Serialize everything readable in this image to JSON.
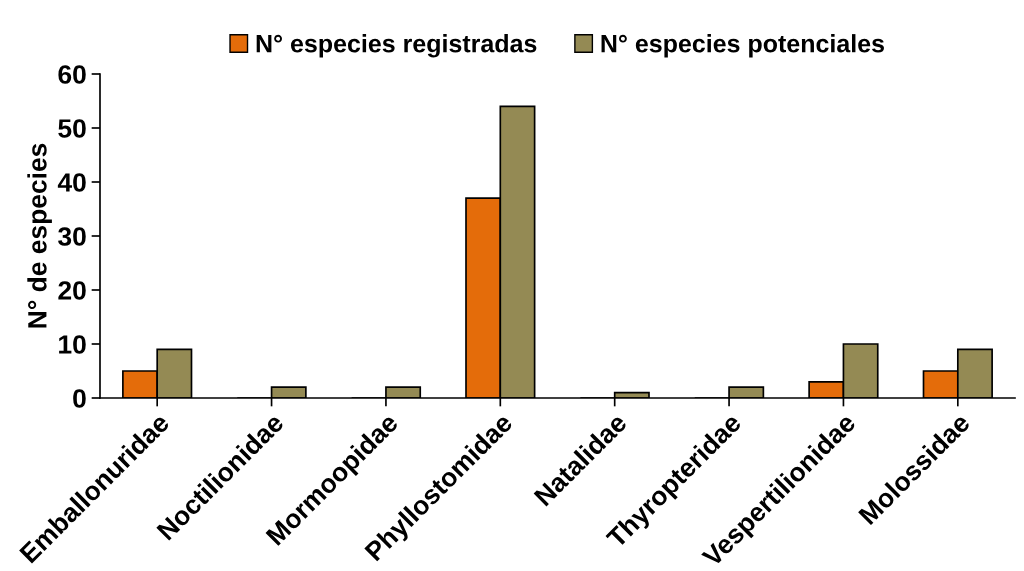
{
  "chart_data": {
    "type": "bar",
    "ylabel": "N° de especies",
    "categories": [
      "Emballonuridae",
      "Noctilionidae",
      "Mormoopidae",
      "Phyllostomidae",
      "Natalidae",
      "Thyropteridae",
      "Vespertilionidae",
      "Molossidae"
    ],
    "series": [
      {
        "name": "N° especies registradas",
        "color": "#e46c0a",
        "values": [
          5,
          0,
          0,
          37,
          0,
          0,
          3,
          5
        ]
      },
      {
        "name": "N° especies potenciales",
        "color": "#948a54",
        "values": [
          9,
          2,
          2,
          54,
          1,
          2,
          10,
          9
        ]
      }
    ],
    "ylim": [
      0,
      60
    ],
    "yticks": [
      0,
      10,
      20,
      30,
      40,
      50,
      60
    ],
    "grid": false,
    "legend": "top"
  }
}
